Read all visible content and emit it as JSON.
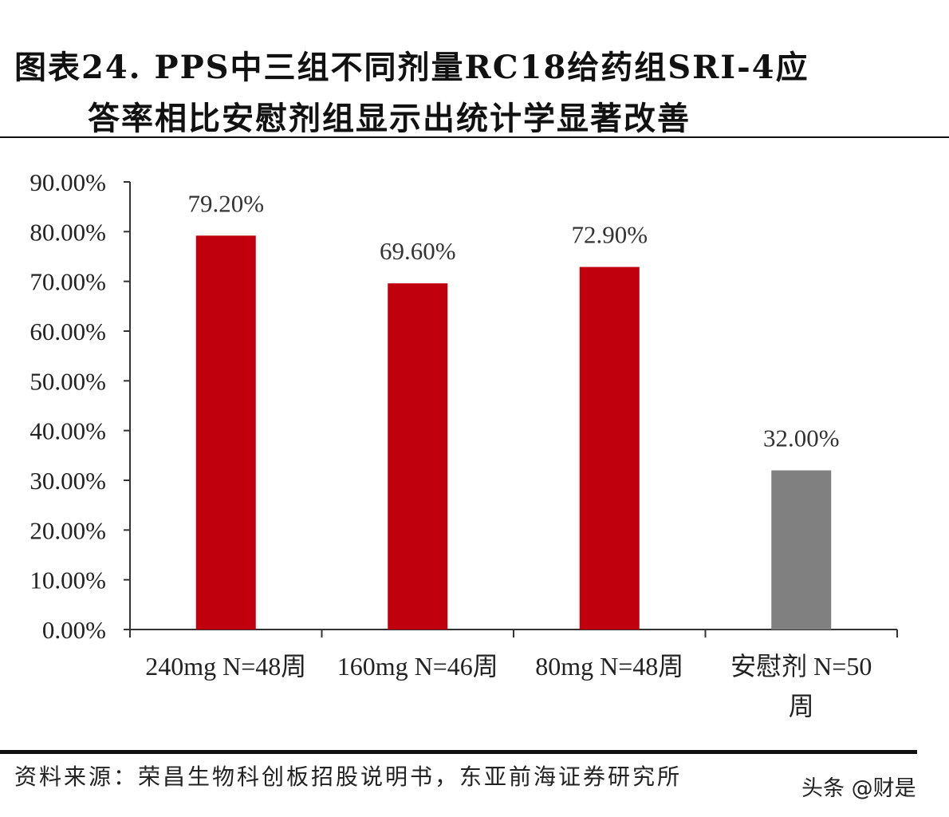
{
  "title_line1": "图表24. PPS中三组不同剂量RC18给药组SRI-4应",
  "title_line2": "答率相比安慰剂组显示出统计学显著改善",
  "source": "资料来源：荣昌生物科创板招股说明书，东亚前海证券研究所",
  "watermark": "头条 @财是",
  "chart_data": {
    "type": "bar",
    "categories": [
      [
        "240mg N=48周"
      ],
      [
        "160mg N=46周"
      ],
      [
        "80mg N=48周"
      ],
      [
        "安慰剂 N=50",
        "周"
      ]
    ],
    "values": [
      79.2,
      69.6,
      72.9,
      32.0
    ],
    "data_labels": [
      "79.20%",
      "69.60%",
      "72.90%",
      "32.00%"
    ],
    "colors": [
      "#c0000c",
      "#c0000c",
      "#c0000c",
      "#808080"
    ],
    "ylim": [
      0,
      90
    ],
    "yticks": [
      "0.00%",
      "10.00%",
      "20.00%",
      "30.00%",
      "40.00%",
      "50.00%",
      "60.00%",
      "70.00%",
      "80.00%",
      "90.00%"
    ],
    "xlabel": "",
    "ylabel": "",
    "grid": false,
    "legend": "none"
  }
}
